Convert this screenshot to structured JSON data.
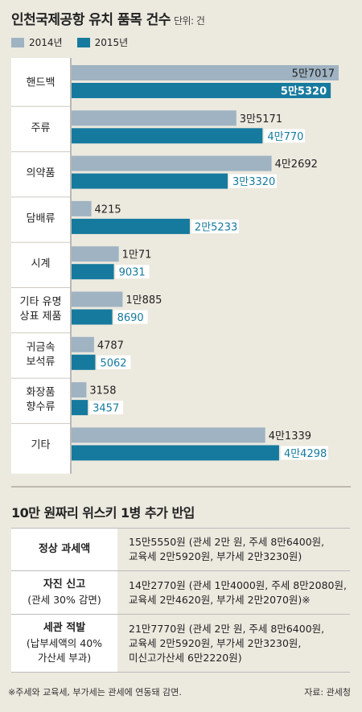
{
  "header": {
    "title": "인천국제공항 유치 품목 건수",
    "unit": "단위: 건"
  },
  "colors": {
    "s2014": "#9fb3c2",
    "s2015": "#167a9e",
    "labelPanel": "#ffffff"
  },
  "chart_data": {
    "type": "bar",
    "orientation": "horizontal",
    "title": "인천국제공항 유치 품목 건수",
    "unit": "건",
    "categories": [
      "핸드백",
      "주류",
      "의약품",
      "담배류",
      "시계",
      "기타 유명 상표 제품",
      "귀금속 보석류",
      "화장품 향수류",
      "기타"
    ],
    "category_lines": [
      [
        "핸드백"
      ],
      [
        "주류"
      ],
      [
        "의약품"
      ],
      [
        "담배류"
      ],
      [
        "시계"
      ],
      [
        "기타 유명",
        "상표 제품"
      ],
      [
        "귀금속",
        "보석류"
      ],
      [
        "화장품",
        "향수류"
      ],
      [
        "기타"
      ]
    ],
    "series": [
      {
        "name": "2014년",
        "values": [
          57017,
          35171,
          42692,
          4215,
          10071,
          10885,
          4787,
          3158,
          41339
        ],
        "labels": [
          "5만7017",
          "3만5171",
          "4만2692",
          "4215",
          "1만71",
          "1만885",
          "4787",
          "3158",
          "4만1339"
        ]
      },
      {
        "name": "2015년",
        "values": [
          55320,
          40770,
          33320,
          25233,
          9031,
          8690,
          5062,
          3457,
          44298
        ],
        "labels": [
          "5만5320",
          "4만770",
          "3만3320",
          "2만5233",
          "9031",
          "8690",
          "5062",
          "3457",
          "4만4298"
        ]
      }
    ],
    "xlim": [
      0,
      57017
    ],
    "grid": false,
    "legend": "top-left"
  },
  "section2": {
    "title": "10만 원짜리 위스키 1병 추가 반입",
    "rows": [
      {
        "label": "정상 과세액",
        "sub": [],
        "lines": [
          "15만5550원 (관세 2만 원, 주세 8만6400원,",
          "교육세 2만5920원, 부가세 2만3230원)"
        ]
      },
      {
        "label": "자진 신고",
        "sub": [
          "(관세 30% 감면)"
        ],
        "lines": [
          "14만2770원 (관세 1만4000원, 주세 8만2080원,",
          "교육세 2만4620원, 부가세 2만2070원)※"
        ]
      },
      {
        "label": "세관 적발",
        "sub": [
          "(납부세액의 40%",
          "가산세 부과)"
        ],
        "lines": [
          "21만7770원 (관세 2만 원, 주세 8만6400원,",
          "교육세 2만5920원, 부가세 2만3230원,",
          "미신고가산세 6만2220원)"
        ]
      }
    ]
  },
  "footnote": "※주세와 교육세, 부가세는 관세에 연동돼 감면.",
  "source": "자료: 관세청"
}
